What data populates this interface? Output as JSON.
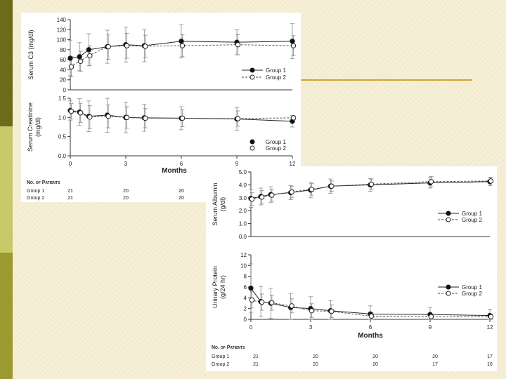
{
  "panel_a": {
    "chart_data": [
      {
        "type": "line",
        "ylabel": "Serum C3 (mg/dl)",
        "ylim": [
          0,
          140
        ],
        "yticks": [
          0,
          20,
          40,
          60,
          80,
          100,
          120,
          140
        ],
        "xlim": [
          0,
          12
        ],
        "xticks": [
          0,
          3,
          6,
          9,
          12
        ],
        "x": [
          0,
          0.5,
          1,
          2,
          3,
          4,
          6,
          9,
          12
        ],
        "series": [
          {
            "name": "Group 1",
            "marker": "filled",
            "values": [
              63,
              66,
              80,
              86,
              90,
              88,
              97,
              95,
              97
            ],
            "error": [
              35,
              28,
              32,
              33,
              35,
              32,
              33,
              25,
              35
            ]
          },
          {
            "name": "Group 2",
            "marker": "open",
            "values": [
              46,
              57,
              68,
              86,
              88,
              87,
              88,
              90,
              88
            ],
            "error": [
              20,
              20,
              20,
              25,
              25,
              22,
              22,
              20,
              20
            ]
          }
        ],
        "legend": "bottom-right"
      },
      {
        "type": "line",
        "ylabel_lines": [
          "Serum Creatinine",
          "(mg/dl)"
        ],
        "ylim": [
          0,
          1.5
        ],
        "yticks": [
          "0.0",
          "0.5",
          "1.0",
          "1.5"
        ],
        "xlim": [
          0,
          12
        ],
        "xticks": [
          "0",
          "3",
          "6",
          "9",
          "12"
        ],
        "xlabel": "Months",
        "x": [
          0,
          0.5,
          1,
          2,
          3,
          4,
          6,
          9,
          12
        ],
        "series": [
          {
            "name": "Group 1",
            "marker": "filled",
            "values": [
              1.18,
              1.14,
              1.03,
              1.06,
              1.0,
              0.99,
              0.98,
              0.96,
              0.9
            ],
            "error": [
              0.25,
              0.35,
              0.4,
              0.45,
              0.4,
              0.35,
              0.3,
              0.3,
              0.15
            ]
          },
          {
            "name": "Group 2",
            "marker": "open",
            "values": [
              1.16,
              1.12,
              1.01,
              1.03,
              1.0,
              0.98,
              0.98,
              0.97,
              0.99
            ],
            "error": [
              0.2,
              0.25,
              0.3,
              0.3,
              0.28,
              0.25,
              0.22,
              0.2,
              0.05
            ]
          }
        ],
        "legend": "bottom-right"
      }
    ],
    "patients": {
      "title": "No. of Patients",
      "rows": [
        {
          "label": "Group 1",
          "counts": [
            "21",
            "20",
            "20"
          ]
        },
        {
          "label": "Group 2",
          "counts": [
            "21",
            "20",
            "20"
          ]
        }
      ]
    }
  },
  "panel_b": {
    "chart_data": [
      {
        "type": "line",
        "ylabel_lines": [
          "Serum Albumin",
          "(g/dl)"
        ],
        "ylim": [
          0,
          5
        ],
        "yticks": [
          "0.0",
          "1.0",
          "2.0",
          "3.0",
          "4.0",
          "5.0"
        ],
        "xlim": [
          0,
          12
        ],
        "xticks": [],
        "x": [
          0,
          0.5,
          1,
          2,
          3,
          4,
          6,
          9,
          12
        ],
        "series": [
          {
            "name": "Group 1",
            "marker": "filled",
            "values": [
              2.95,
              3.1,
              3.25,
              3.4,
              3.6,
              3.9,
              4.0,
              4.15,
              4.25
            ],
            "error": [
              0.7,
              0.65,
              0.6,
              0.55,
              0.6,
              0.55,
              0.5,
              0.4,
              0.3
            ]
          },
          {
            "name": "Group 2",
            "marker": "open",
            "values": [
              2.9,
              3.05,
              3.2,
              3.45,
              3.65,
              3.9,
              4.05,
              4.25,
              4.3
            ],
            "error": [
              0.5,
              0.5,
              0.45,
              0.45,
              0.45,
              0.4,
              0.4,
              0.4,
              0.3
            ]
          }
        ],
        "legend": "bottom-right"
      },
      {
        "type": "line",
        "ylabel_lines": [
          "Urinary Protein",
          "(g/24 hr)"
        ],
        "ylim": [
          0,
          12
        ],
        "yticks": [
          "0",
          "2",
          "4",
          "6",
          "8",
          "10",
          "12"
        ],
        "xlim": [
          0,
          12
        ],
        "xticks": [
          "0",
          "3",
          "6",
          "9",
          "12"
        ],
        "xlabel": "Months",
        "x": [
          0,
          0.5,
          1,
          2,
          3,
          4,
          6,
          9,
          12
        ],
        "series": [
          {
            "name": "Group 1",
            "marker": "filled",
            "values": [
              5.8,
              3.3,
              3.0,
              2.2,
              2.0,
              1.6,
              1.0,
              0.9,
              0.7
            ],
            "error": [
              4.5,
              2.8,
              2.8,
              2.6,
              2.2,
              1.9,
              1.5,
              1.3,
              1.2
            ]
          },
          {
            "name": "Group 2",
            "marker": "open",
            "values": [
              3.6,
              3.2,
              3.1,
              2.5,
              1.6,
              1.5,
              0.6,
              0.5,
              0.5
            ],
            "error": [
              1.5,
              1.5,
              1.4,
              1.3,
              1.3,
              1.2,
              0.6,
              0.5,
              0.5
            ]
          }
        ],
        "legend": "right"
      }
    ],
    "patients": {
      "title": "No. of Patients",
      "rows": [
        {
          "label": "Group 1",
          "counts": [
            "21",
            "20",
            "20",
            "20",
            "17"
          ]
        },
        {
          "label": "Group 2",
          "counts": [
            "21",
            "20",
            "20",
            "17",
            "16"
          ]
        }
      ]
    }
  }
}
